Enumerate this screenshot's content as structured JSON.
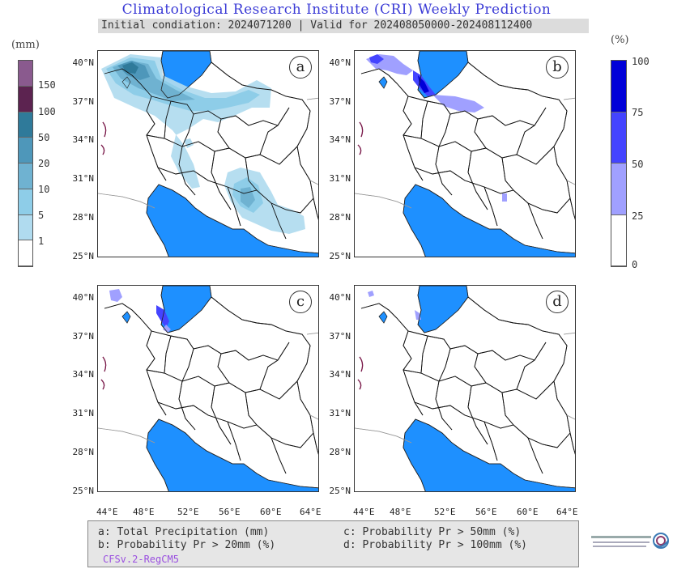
{
  "title": "Climatological Research Institute (CRI) Weekly Prediction",
  "subtitle": "Initial condiation: 2024071200 | Valid for 202408050000-202408112400",
  "left_colorbar": {
    "unit": "(mm)",
    "ticks": [
      "150",
      "100",
      "50",
      "20",
      "10",
      "5",
      "1"
    ],
    "colors": [
      "#ffffff",
      "#b0dbef",
      "#8ecde8",
      "#6fb2d1",
      "#4e97ba",
      "#2f7a9a",
      "#5c2350",
      "#8a5a8e"
    ]
  },
  "right_colorbar": {
    "unit": "(%)",
    "ticks": [
      "100",
      "75",
      "50",
      "25",
      "0"
    ],
    "colors": [
      "#ffffff",
      "#a0a0ff",
      "#4444ff",
      "#0000d8"
    ]
  },
  "panels": [
    {
      "label": "a"
    },
    {
      "label": "b"
    },
    {
      "label": "c"
    },
    {
      "label": "d"
    }
  ],
  "latitudes": [
    "40°N",
    "37°N",
    "34°N",
    "31°N",
    "28°N",
    "25°N"
  ],
  "longitudes": [
    "44°E",
    "48°E",
    "52°E",
    "56°E",
    "60°E",
    "64°E"
  ],
  "legend": {
    "a": "a: Total Precipitation (mm)",
    "b": "b: Probability Pr > 20mm (%)",
    "c": "c: Probability Pr > 50mm (%)",
    "d": "d: Probability Pr > 100mm (%)",
    "model": "CFSv.2-RegCM5"
  },
  "colors": {
    "sea": "#1e90ff",
    "border": "#111111",
    "title": "#3b3bd6"
  }
}
